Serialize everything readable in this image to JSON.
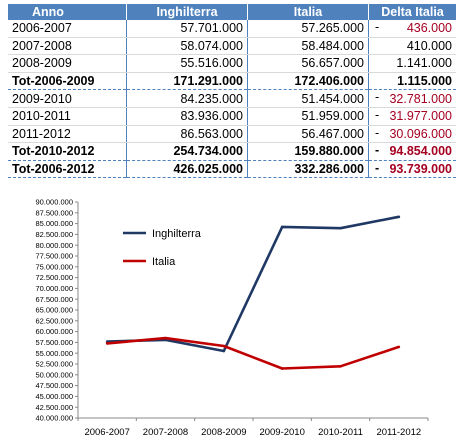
{
  "table": {
    "headers": [
      "Anno",
      "Inghilterra",
      "Italia",
      "Delta Italia"
    ],
    "rows": [
      {
        "anno": "2006-2007",
        "inghilterra": "57.701.000",
        "italia": "57.265.000",
        "sign": "-",
        "delta": "436.000",
        "negative": true,
        "total": false,
        "sep": false
      },
      {
        "anno": "2007-2008",
        "inghilterra": "58.074.000",
        "italia": "58.484.000",
        "sign": "",
        "delta": "410.000",
        "negative": false,
        "total": false,
        "sep": false
      },
      {
        "anno": "2008-2009",
        "inghilterra": "55.516.000",
        "italia": "56.657.000",
        "sign": "",
        "delta": "1.141.000",
        "negative": false,
        "total": false,
        "sep": false
      },
      {
        "anno": "Tot-2006-2009",
        "inghilterra": "171.291.000",
        "italia": "172.406.000",
        "sign": "",
        "delta": "1.115.000",
        "negative": false,
        "total": true,
        "sep": true
      },
      {
        "anno": "2009-2010",
        "inghilterra": "84.235.000",
        "italia": "51.454.000",
        "sign": "-",
        "delta": "32.781.000",
        "negative": true,
        "total": false,
        "sep": false
      },
      {
        "anno": "2010-2011",
        "inghilterra": "83.936.000",
        "italia": "51.959.000",
        "sign": "-",
        "delta": "31.977.000",
        "negative": true,
        "total": false,
        "sep": false
      },
      {
        "anno": "2011-2012",
        "inghilterra": "86.563.000",
        "italia": "56.467.000",
        "sign": "-",
        "delta": "30.096.000",
        "negative": true,
        "total": false,
        "sep": false
      },
      {
        "anno": "Tot-2010-2012",
        "inghilterra": "254.734.000",
        "italia": "159.880.000",
        "sign": "-",
        "delta": "94.854.000",
        "negative": true,
        "total": true,
        "sep": true
      },
      {
        "anno": "Tot-2006-2012",
        "inghilterra": "426.025.000",
        "italia": "332.286.000",
        "sign": "-",
        "delta": "93.739.000",
        "negative": true,
        "total": true,
        "sep": true
      }
    ]
  },
  "chart_data": {
    "type": "line",
    "title": "",
    "xlabel": "",
    "ylabel": "",
    "categories": [
      "2006-2007",
      "2007-2008",
      "2008-2009",
      "2009-2010",
      "2010-2011",
      "2011-2012"
    ],
    "series": [
      {
        "name": "Inghilterra",
        "color": "#1f3864",
        "values": [
          57701000,
          58074000,
          55516000,
          84235000,
          83936000,
          86563000
        ]
      },
      {
        "name": "Italia",
        "color": "#c00000",
        "values": [
          57265000,
          58484000,
          56657000,
          51454000,
          51959000,
          56467000
        ]
      }
    ],
    "ylim": [
      40000000,
      90000000
    ],
    "ytick_step": 2500000,
    "ytick_labels": [
      "40.000.000",
      "42.500.000",
      "45.000.000",
      "47.500.000",
      "50.000.000",
      "52.500.000",
      "55.000.000",
      "57.500.000",
      "60.000.000",
      "62.500.000",
      "65.000.000",
      "67.500.000",
      "70.000.000",
      "72.500.000",
      "75.000.000",
      "77.500.000",
      "80.000.000",
      "82.500.000",
      "85.000.000",
      "87.500.000",
      "90.000.000"
    ],
    "grid": false,
    "legend_position": "top-left inside plot"
  }
}
